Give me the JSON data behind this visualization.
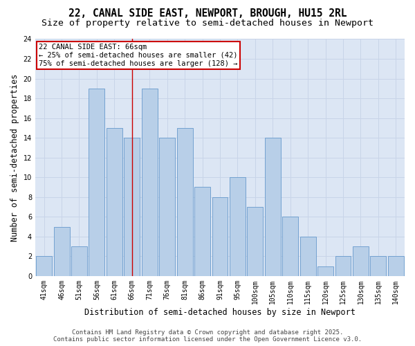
{
  "title_line1": "22, CANAL SIDE EAST, NEWPORT, BROUGH, HU15 2RL",
  "title_line2": "Size of property relative to semi-detached houses in Newport",
  "xlabel": "Distribution of semi-detached houses by size in Newport",
  "ylabel": "Number of semi-detached properties",
  "categories": [
    "41sqm",
    "46sqm",
    "51sqm",
    "56sqm",
    "61sqm",
    "66sqm",
    "71sqm",
    "76sqm",
    "81sqm",
    "86sqm",
    "91sqm",
    "95sqm",
    "100sqm",
    "105sqm",
    "110sqm",
    "115sqm",
    "120sqm",
    "125sqm",
    "130sqm",
    "135sqm",
    "140sqm"
  ],
  "values": [
    2,
    5,
    3,
    19,
    15,
    14,
    19,
    14,
    15,
    9,
    8,
    10,
    7,
    14,
    6,
    4,
    1,
    2,
    3,
    2,
    2
  ],
  "bar_color": "#b8cfe8",
  "bar_edge_color": "#6699cc",
  "highlight_index": 5,
  "highlight_line_color": "#cc0000",
  "annotation_text": "22 CANAL SIDE EAST: 66sqm\n← 25% of semi-detached houses are smaller (42)\n75% of semi-detached houses are larger (128) →",
  "annotation_box_color": "#cc0000",
  "ylim": [
    0,
    24
  ],
  "yticks": [
    0,
    2,
    4,
    6,
    8,
    10,
    12,
    14,
    16,
    18,
    20,
    22,
    24
  ],
  "grid_color": "#c8d4e8",
  "background_color": "#dce6f4",
  "footer_line1": "Contains HM Land Registry data © Crown copyright and database right 2025.",
  "footer_line2": "Contains public sector information licensed under the Open Government Licence v3.0.",
  "title_fontsize": 10.5,
  "subtitle_fontsize": 9.5,
  "axis_label_fontsize": 8.5,
  "tick_fontsize": 7,
  "annotation_fontsize": 7.5,
  "footer_fontsize": 6.5
}
